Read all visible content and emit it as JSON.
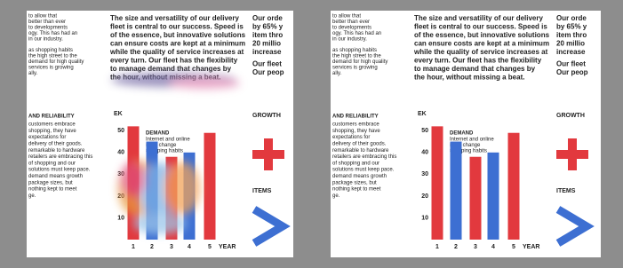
{
  "heading_lines": [
    "The size and versatility of our delivery",
    "fleet is central to our success. Speed is",
    "of the essence, but innovative solutions",
    "can ensure costs are kept at a minimum",
    "while the quality of service increases at",
    "every turn. Our fleet has the flexibility",
    "to manage demand that changes by",
    "the hour, without missing a beat."
  ],
  "left_column": {
    "intro_lines": [
      "to allow that",
      "better than ever",
      "to developments",
      "ogy. This has had an",
      "in our industry.",
      "as shopping habits",
      "the high street to the",
      "demand for high quality",
      "services is growing",
      "ally."
    ],
    "section_heading": "AND RELIABILITY",
    "body_lines": [
      "customers embrace",
      "shopping, they have",
      "expectations for",
      "delivery of their goods.",
      "remarkable to hardware",
      "retailers are embracing this",
      "of shopping and our",
      "solutions must keep pace.",
      "demand means growth",
      "package sizes, but",
      "nothing kept to meet",
      "ge."
    ]
  },
  "right_column": {
    "lines": [
      "Our orde",
      "by 65% y",
      "item thro",
      "20 millio",
      "increase",
      "Our fleet",
      "Our peop"
    ],
    "growth": "GROWTH",
    "items": "ITEMS"
  },
  "chart_data": {
    "type": "bar",
    "y_label": "EK",
    "annotation_title": "DEMAND",
    "annotation_lines": [
      "Internet and online",
      "retail change",
      "shopping habits"
    ],
    "categories": [
      "1",
      "2",
      "3",
      "4",
      "5"
    ],
    "x_label": "YEAR",
    "values": [
      52,
      45,
      38,
      40,
      49
    ],
    "colors": [
      "#e2393e",
      "#3d6fd2",
      "#e2393e",
      "#3d6fd2",
      "#e2393e"
    ],
    "ylim": [
      0,
      55
    ],
    "yticks": [
      10,
      20,
      30,
      40,
      50
    ]
  }
}
